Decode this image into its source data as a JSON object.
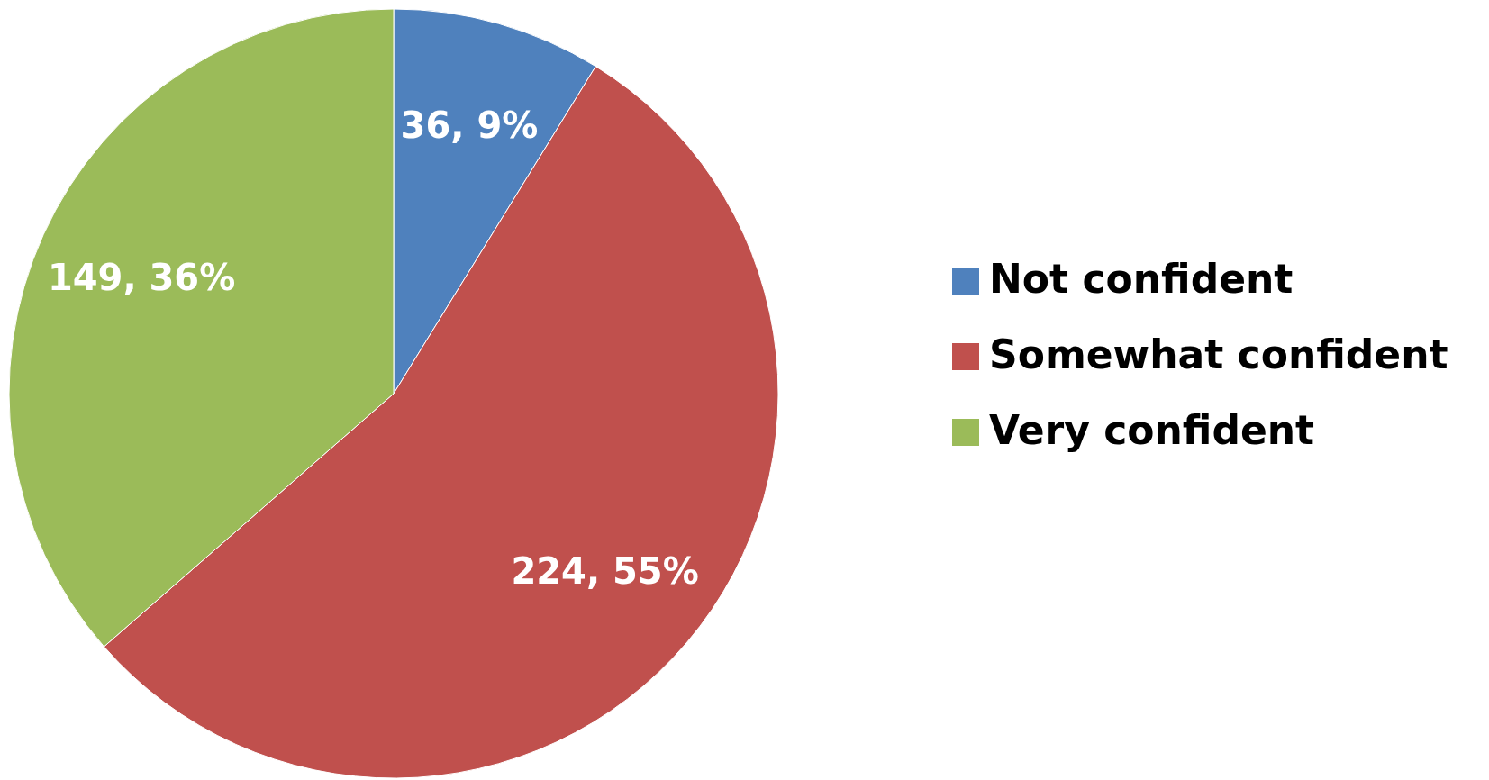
{
  "chart_data": {
    "type": "pie",
    "categories": [
      "Not confident",
      "Somewhat confident",
      "Very confident"
    ],
    "values": [
      36,
      224,
      149
    ],
    "value_labels": [
      "36, 9%",
      "224, 55%",
      "149, 36%"
    ],
    "colors": [
      "#4f81bd",
      "#c0504d",
      "#9bbb59"
    ],
    "legend": "right"
  }
}
